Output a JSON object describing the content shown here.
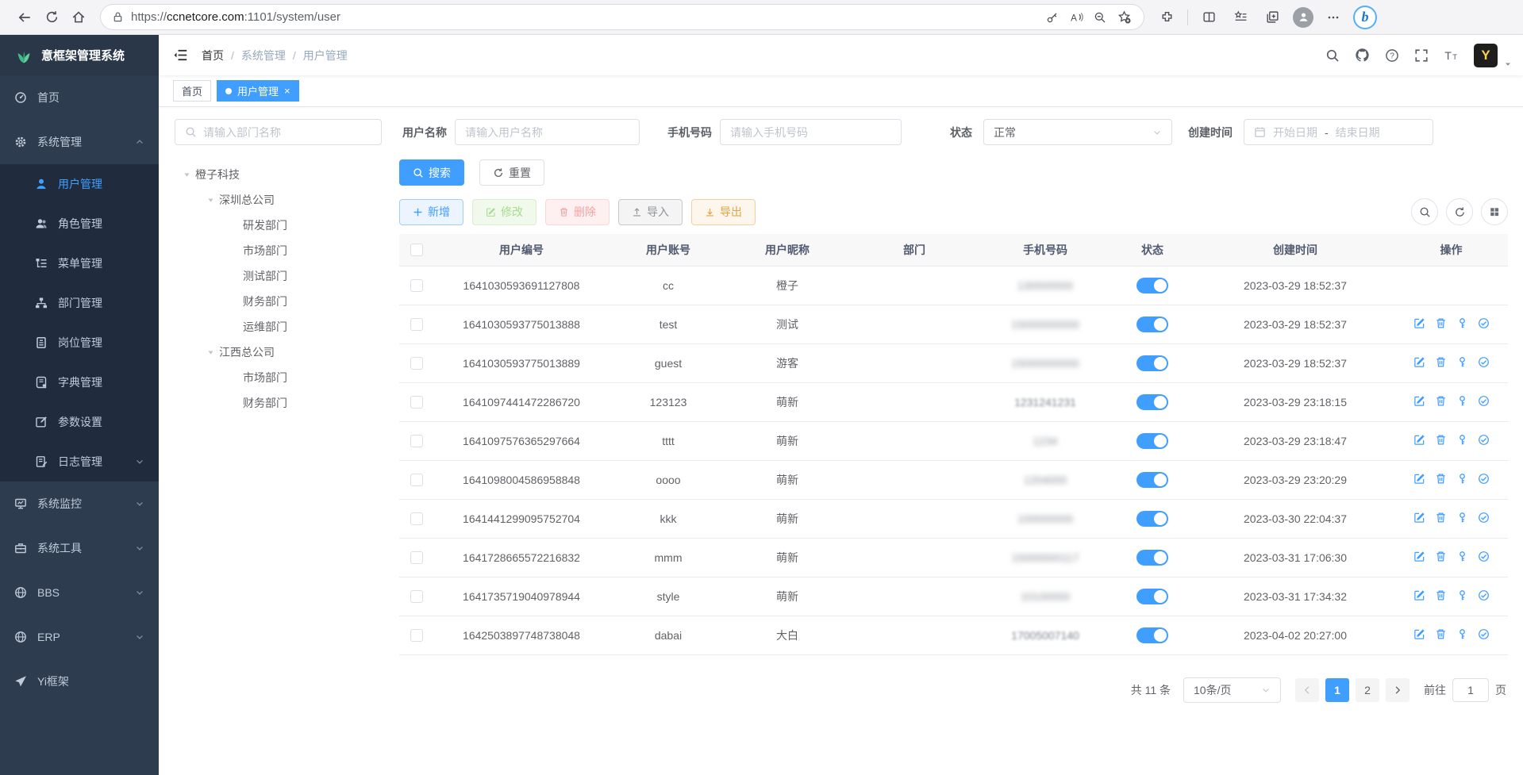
{
  "colors": {
    "primary": "#409eff",
    "sidebar_bg": "#2e3c50",
    "submenu_bg": "#202c3e",
    "logo_bg": "#2a3749",
    "active_tab_bg": "#409eff",
    "toggle_on": "#409eff",
    "success_btn": "#f0f9eb",
    "danger_btn": "#fef0f0",
    "warning_btn": "#fdf6ec"
  },
  "browser": {
    "url_scheme": "https://",
    "url_host": "ccnetcore.com",
    "url_path": ":1101/system/user",
    "left_icons": [
      "back-icon",
      "refresh-icon",
      "home-icon"
    ],
    "pill_icons": [
      "lock-icon",
      "key-icon",
      "read-aloud-icon",
      "zoom-out-icon",
      "favorite-add-icon"
    ],
    "right_icons": [
      "extensions-icon",
      "split-screen-icon",
      "favorites-bar-icon",
      "collections-icon",
      "profile-avatar-icon",
      "more-icon",
      "copilot-icon"
    ],
    "copilot_letter": "b"
  },
  "sidebar": {
    "logo_title": "意框架管理系统",
    "logo_icon": "plant-icon",
    "items": [
      {
        "name": "home",
        "label": "首页",
        "icon": "dashboard-icon",
        "level": 1
      },
      {
        "name": "system-management",
        "label": "系统管理",
        "icon": "gear-icon",
        "level": 1,
        "chevron": "up"
      },
      {
        "name": "user-management",
        "label": "用户管理",
        "icon": "user-icon",
        "level": 2,
        "active": true
      },
      {
        "name": "role-management",
        "label": "角色管理",
        "icon": "role-icon",
        "level": 2
      },
      {
        "name": "menu-management",
        "label": "菜单管理",
        "icon": "menu-tree-icon",
        "level": 2
      },
      {
        "name": "dept-management",
        "label": "部门管理",
        "icon": "org-icon",
        "level": 2
      },
      {
        "name": "post-management",
        "label": "岗位管理",
        "icon": "badge-icon",
        "level": 2
      },
      {
        "name": "dict-management",
        "label": "字典管理",
        "icon": "dict-icon",
        "level": 2
      },
      {
        "name": "param-settings",
        "label": "参数设置",
        "icon": "param-icon",
        "level": 2
      },
      {
        "name": "log-management",
        "label": "日志管理",
        "icon": "log-icon",
        "level": 2,
        "chevron": "down"
      },
      {
        "name": "system-monitor",
        "label": "系统监控",
        "icon": "monitor-icon",
        "level": 1,
        "chevron": "down"
      },
      {
        "name": "system-tools",
        "label": "系统工具",
        "icon": "tools-icon",
        "level": 1,
        "chevron": "down"
      },
      {
        "name": "bbs",
        "label": "BBS",
        "icon": "globe-icon",
        "level": 1,
        "chevron": "down"
      },
      {
        "name": "erp",
        "label": "ERP",
        "icon": "globe-icon",
        "level": 1,
        "chevron": "down"
      },
      {
        "name": "yi-framework",
        "label": "Yi框架",
        "icon": "plane-icon",
        "level": 1
      }
    ]
  },
  "navbar": {
    "breadcrumb": [
      "首页",
      "系统管理",
      "用户管理"
    ],
    "separator": "/",
    "icons": [
      "search-icon",
      "github-icon",
      "help-icon",
      "fullscreen-icon",
      "font-size-icon"
    ],
    "avatar_letter": "Y"
  },
  "tabs": [
    {
      "label": "首页",
      "active": false,
      "closable": false
    },
    {
      "label": "用户管理",
      "active": true,
      "closable": true,
      "close_glyph": "×"
    }
  ],
  "filters": {
    "dept_placeholder": "请输入部门名称",
    "username_label": "用户名称",
    "username_placeholder": "请输入用户名称",
    "phone_label": "手机号码",
    "phone_placeholder": "请输入手机号码",
    "status_label": "状态",
    "status_value": "正常",
    "created_label": "创建时间",
    "date_start_placeholder": "开始日期",
    "date_separator": "-",
    "date_end_placeholder": "结束日期"
  },
  "tree": {
    "nodes": [
      {
        "label": "橙子科技",
        "level": 0,
        "caret": true
      },
      {
        "label": "深圳总公司",
        "level": 1,
        "caret": true
      },
      {
        "label": "研发部门",
        "level": 2
      },
      {
        "label": "市场部门",
        "level": 2
      },
      {
        "label": "测试部门",
        "level": 2
      },
      {
        "label": "财务部门",
        "level": 2
      },
      {
        "label": "运维部门",
        "level": 2
      },
      {
        "label": "江西总公司",
        "level": 1,
        "caret": true
      },
      {
        "label": "市场部门",
        "level": 2
      },
      {
        "label": "财务部门",
        "level": 2
      }
    ]
  },
  "toolbar": {
    "search_label": "搜索",
    "reset_label": "重置",
    "add_label": "新增",
    "edit_label": "修改",
    "delete_label": "删除",
    "import_label": "导入",
    "export_label": "导出",
    "right_icons": [
      "search-circle-icon",
      "refresh-circle-icon",
      "grid-icon"
    ]
  },
  "table": {
    "columns": [
      "用户编号",
      "用户账号",
      "用户昵称",
      "部门",
      "手机号码",
      "状态",
      "创建时间",
      "操作"
    ],
    "row_action_icons": [
      "edit-icon",
      "delete-icon",
      "reset-password-icon",
      "assign-role-icon"
    ],
    "rows": [
      {
        "id": "1641030593691127808",
        "account": "cc",
        "nickname": "橙子",
        "dept": "",
        "phone": "130000000",
        "phone_blur": "heavy",
        "status": "on",
        "created": "2023-03-29 18:52:37",
        "has_actions": false
      },
      {
        "id": "1641030593775013888",
        "account": "test",
        "nickname": "测试",
        "dept": "",
        "phone": "15000000000",
        "phone_blur": "heavy",
        "status": "on",
        "created": "2023-03-29 18:52:37",
        "has_actions": true
      },
      {
        "id": "1641030593775013889",
        "account": "guest",
        "nickname": "游客",
        "dept": "",
        "phone": "15000000000",
        "phone_blur": "heavy",
        "status": "on",
        "created": "2023-03-29 18:52:37",
        "has_actions": true
      },
      {
        "id": "1641097441472286720",
        "account": "123123",
        "nickname": "萌新",
        "dept": "",
        "phone": "1231241231",
        "phone_blur": "light",
        "status": "on",
        "created": "2023-03-29 23:18:15",
        "has_actions": true
      },
      {
        "id": "1641097576365297664",
        "account": "tttt",
        "nickname": "萌新",
        "dept": "",
        "phone": "1234",
        "phone_blur": "heavy",
        "status": "on",
        "created": "2023-03-29 23:18:47",
        "has_actions": true
      },
      {
        "id": "1641098004586958848",
        "account": "oooo",
        "nickname": "萌新",
        "dept": "",
        "phone": "1204000",
        "phone_blur": "heavy",
        "status": "on",
        "created": "2023-03-29 23:20:29",
        "has_actions": true
      },
      {
        "id": "1641441299095752704",
        "account": "kkk",
        "nickname": "萌新",
        "dept": "",
        "phone": "100000000",
        "phone_blur": "heavy",
        "status": "on",
        "created": "2023-03-30 22:04:37",
        "has_actions": true
      },
      {
        "id": "1641728665572216832",
        "account": "mmm",
        "nickname": "萌新",
        "dept": "",
        "phone": "15000000117",
        "phone_blur": "heavy",
        "status": "on",
        "created": "2023-03-31 17:06:30",
        "has_actions": true
      },
      {
        "id": "1641735719040978944",
        "account": "style",
        "nickname": "萌新",
        "dept": "",
        "phone": "10100000",
        "phone_blur": "heavy",
        "status": "on",
        "created": "2023-03-31 17:34:32",
        "has_actions": true
      },
      {
        "id": "1642503897748738048",
        "account": "dabai",
        "nickname": "大白",
        "dept": "",
        "phone": "17005007140",
        "phone_blur": "light",
        "status": "on",
        "created": "2023-04-02 20:27:00",
        "has_actions": true
      }
    ]
  },
  "pagination": {
    "total_label": "共 11 条",
    "page_size_value": "10条/页",
    "pages": [
      "1",
      "2"
    ],
    "active_page": "1",
    "goto_label": "前往",
    "goto_value": "1",
    "page_unit": "页"
  }
}
